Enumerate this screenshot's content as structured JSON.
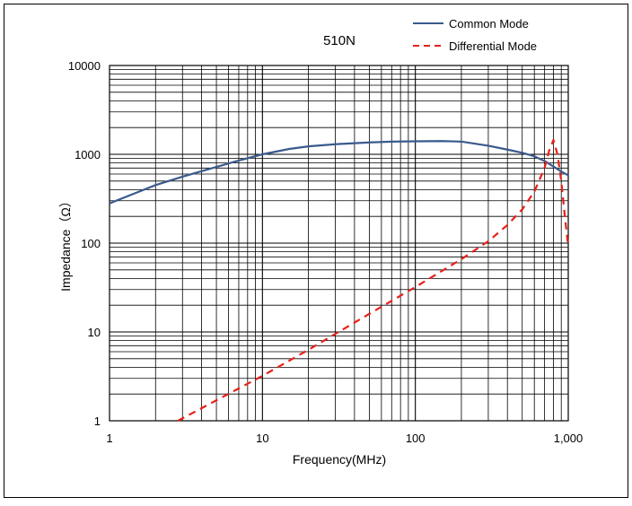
{
  "chart_data": {
    "type": "line",
    "title": "510N",
    "xlabel": "Frequency(MHz)",
    "ylabel": "Impedance（Ω）",
    "x_scale": "log",
    "y_scale": "log",
    "xlim": [
      1,
      1000
    ],
    "ylim": [
      1,
      10000
    ],
    "x_ticks": [
      {
        "value": 1,
        "label": "1"
      },
      {
        "value": 10,
        "label": "10"
      },
      {
        "value": 100,
        "label": "100"
      },
      {
        "value": 1000,
        "label": "1,000"
      }
    ],
    "y_ticks": [
      {
        "value": 1,
        "label": "1"
      },
      {
        "value": 10,
        "label": "10"
      },
      {
        "value": 100,
        "label": "100"
      },
      {
        "value": 1000,
        "label": "1000"
      },
      {
        "value": 10000,
        "label": "10000"
      }
    ],
    "grid": true,
    "legend_position": "top-right",
    "series": [
      {
        "name": "Common Mode",
        "color": "#3a5a8c",
        "style": "solid",
        "points": [
          [
            1,
            280
          ],
          [
            1.5,
            370
          ],
          [
            2,
            450
          ],
          [
            3,
            560
          ],
          [
            5,
            720
          ],
          [
            7,
            850
          ],
          [
            10,
            1000
          ],
          [
            15,
            1150
          ],
          [
            20,
            1230
          ],
          [
            30,
            1300
          ],
          [
            50,
            1360
          ],
          [
            70,
            1390
          ],
          [
            100,
            1400
          ],
          [
            150,
            1410
          ],
          [
            200,
            1390
          ],
          [
            300,
            1250
          ],
          [
            400,
            1130
          ],
          [
            500,
            1040
          ],
          [
            600,
            950
          ],
          [
            700,
            840
          ],
          [
            800,
            730
          ],
          [
            900,
            640
          ],
          [
            1000,
            580
          ]
        ]
      },
      {
        "name": "Differential Mode",
        "color": "#e8201a",
        "style": "dashed",
        "points": [
          [
            2.8,
            1
          ],
          [
            5,
            1.7
          ],
          [
            10,
            3.2
          ],
          [
            20,
            6.3
          ],
          [
            50,
            16
          ],
          [
            100,
            32
          ],
          [
            200,
            66
          ],
          [
            300,
            105
          ],
          [
            400,
            160
          ],
          [
            500,
            240
          ],
          [
            600,
            380
          ],
          [
            700,
            700
          ],
          [
            750,
            1100
          ],
          [
            800,
            1450
          ],
          [
            850,
            1000
          ],
          [
            900,
            500
          ],
          [
            950,
            200
          ],
          [
            1000,
            90
          ]
        ]
      }
    ]
  }
}
